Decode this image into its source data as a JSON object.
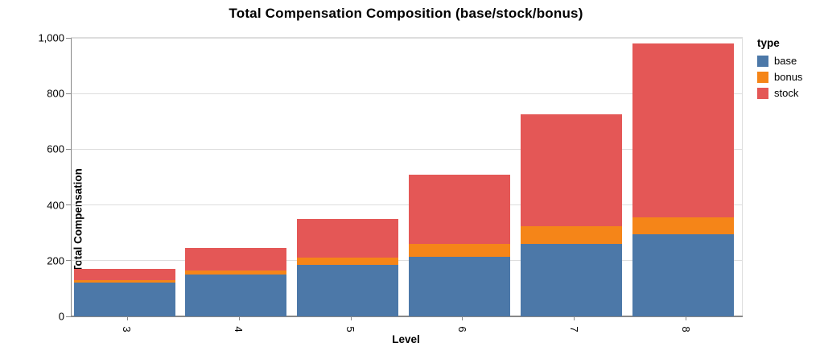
{
  "chart_data": {
    "type": "bar",
    "stacked": true,
    "title": "Total Compensation Composition (base/stock/bonus)",
    "xlabel": "Level",
    "ylabel": "Total Compensation",
    "categories": [
      "3",
      "4",
      "5",
      "6",
      "7",
      "8"
    ],
    "series": [
      {
        "name": "base",
        "color": "#4c78a8",
        "values": [
          120,
          150,
          185,
          215,
          260,
          295
        ]
      },
      {
        "name": "bonus",
        "color": "#f58518",
        "values": [
          10,
          15,
          25,
          45,
          65,
          60
        ]
      },
      {
        "name": "stock",
        "color": "#e45756",
        "values": [
          40,
          80,
          140,
          250,
          400,
          625
        ]
      }
    ],
    "totals": [
      170,
      245,
      350,
      510,
      725,
      980
    ],
    "ylim": [
      0,
      1000
    ],
    "yticks": [
      0,
      200,
      400,
      600,
      800,
      1000
    ],
    "ytick_labels": [
      "0",
      "200",
      "400",
      "600",
      "800",
      "1,000"
    ],
    "grid": true,
    "grid_color": "#dddddd",
    "domain_color": "#888888",
    "x_label_angle": 90,
    "legend_position": "right"
  },
  "legend": {
    "title": "type",
    "items": [
      {
        "label": "base",
        "color": "#4c78a8"
      },
      {
        "label": "bonus",
        "color": "#f58518"
      },
      {
        "label": "stock",
        "color": "#e45756"
      }
    ]
  }
}
